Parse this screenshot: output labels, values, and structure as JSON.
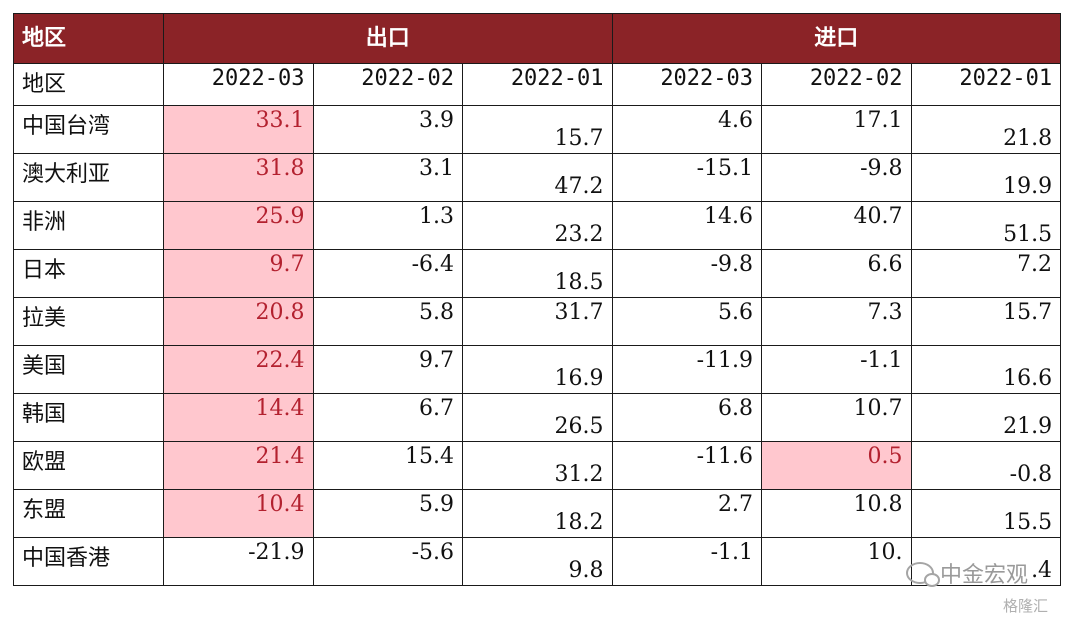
{
  "header": {
    "region_label": "地区",
    "export_label": "出口",
    "import_label": "进口"
  },
  "subheader": {
    "region_label": "地区",
    "dates": [
      "2022-03",
      "2022-02",
      "2022-01",
      "2022-03",
      "2022-02",
      "2022-01"
    ]
  },
  "rows": [
    {
      "region": "中国台湾",
      "values": [
        "33.1",
        "3.9",
        "15.7",
        "4.6",
        "17.1",
        "21.8"
      ],
      "highlight": [
        0
      ]
    },
    {
      "region": "澳大利亚",
      "values": [
        "31.8",
        "3.1",
        "47.2",
        "-15.1",
        "-9.8",
        "19.9"
      ],
      "highlight": [
        0
      ]
    },
    {
      "region": "非洲",
      "values": [
        "25.9",
        "1.3",
        "23.2",
        "14.6",
        "40.7",
        "51.5"
      ],
      "highlight": [
        0
      ]
    },
    {
      "region": "日本",
      "values": [
        "9.7",
        "-6.4",
        "18.5",
        "-9.8",
        "6.6",
        "7.2"
      ],
      "highlight": [
        0
      ]
    },
    {
      "region": "拉美",
      "values": [
        "20.8",
        "5.8",
        "31.7",
        "5.6",
        "7.3",
        "15.7"
      ],
      "highlight": [
        0
      ]
    },
    {
      "region": "美国",
      "values": [
        "22.4",
        "9.7",
        "16.9",
        "-11.9",
        "-1.1",
        "16.6"
      ],
      "highlight": [
        0
      ]
    },
    {
      "region": "韩国",
      "values": [
        "14.4",
        "6.7",
        "26.5",
        "6.8",
        "10.7",
        "21.9"
      ],
      "highlight": [
        0
      ]
    },
    {
      "region": "欧盟",
      "values": [
        "21.4",
        "15.4",
        "31.2",
        "-11.6",
        "0.5",
        "-0.8"
      ],
      "highlight": [
        0,
        4
      ]
    },
    {
      "region": "东盟",
      "values": [
        "10.4",
        "5.9",
        "18.2",
        "2.7",
        "10.8",
        "15.5"
      ],
      "highlight": [
        0
      ]
    },
    {
      "region": "中国香港",
      "values": [
        "-21.9",
        "-5.6",
        "9.8",
        "-1.1",
        "10.",
        ".4"
      ],
      "highlight": []
    }
  ],
  "watermark": {
    "text": "中金宏观",
    "logo_text": "格隆汇",
    "logo_icon": "wechat-icon"
  },
  "colors": {
    "header_bg": "#8b2327",
    "highlight_bg": "#ffc7ce",
    "highlight_text": "#b3212f"
  }
}
